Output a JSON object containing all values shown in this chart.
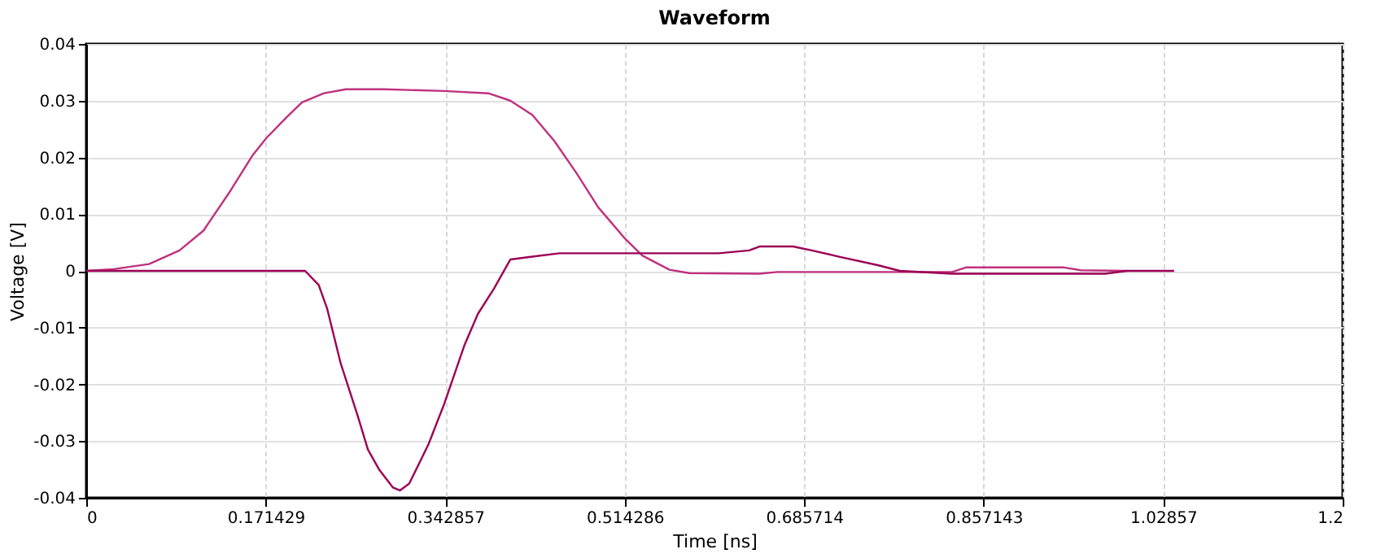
{
  "chart_data": {
    "type": "line",
    "title": "Waveform",
    "xlabel": "Time [ns]",
    "ylabel": "Voltage [V]",
    "xlim": [
      0,
      1.2
    ],
    "xticks": [
      0,
      0.171429,
      0.342857,
      0.514286,
      0.685714,
      0.857143,
      1.02857,
      1.2
    ],
    "ylim": [
      -0.04,
      0.04
    ],
    "yticks": [
      -0.04,
      -0.03,
      -0.02,
      -0.01,
      0,
      0.01,
      0.02,
      0.03,
      0.04
    ],
    "grid": true,
    "line_style": "solid",
    "series": [
      {
        "color": "#c0307e",
        "x": [
          0,
          0.026,
          0.06,
          0.089,
          0.112,
          0.138,
          0.159,
          0.172,
          0.191,
          0.206,
          0.227,
          0.248,
          0.285,
          0.342,
          0.384,
          0.405,
          0.426,
          0.447,
          0.468,
          0.489,
          0.514,
          0.531,
          0.557,
          0.576,
          0.643,
          0.66,
          0.827,
          0.84,
          0.934,
          0.95,
          0.994
        ],
        "values": [
          0,
          0.0003,
          0.0012,
          0.0036,
          0.0071,
          0.0142,
          0.0204,
          0.0234,
          0.027,
          0.0297,
          0.0313,
          0.032,
          0.032,
          0.0317,
          0.0313,
          0.03,
          0.0275,
          0.0229,
          0.0173,
          0.0112,
          0.0058,
          0.0027,
          0.0002,
          -0.0004,
          -0.0005,
          -0.0002,
          -0.0002,
          0.0006,
          0.0006,
          0.0001,
          0
        ]
      },
      {
        "color": "#9c0055",
        "x": [
          0,
          0.209,
          0.222,
          0.23,
          0.243,
          0.259,
          0.269,
          0.28,
          0.293,
          0.2995,
          0.3085,
          0.327,
          0.342,
          0.361,
          0.374,
          0.3895,
          0.405,
          0.426,
          0.452,
          0.604,
          0.633,
          0.643,
          0.675,
          0.693,
          0.719,
          0.756,
          0.777,
          0.827,
          0.973,
          0.994,
          1.039
        ],
        "values": [
          0,
          0,
          -0.0025,
          -0.0066,
          -0.0163,
          -0.0254,
          -0.0315,
          -0.0351,
          -0.0382,
          -0.0387,
          -0.0375,
          -0.0305,
          -0.0234,
          -0.0132,
          -0.0076,
          -0.0031,
          0.002,
          0.0025,
          0.0031,
          0.0031,
          0.0036,
          0.0043,
          0.0043,
          0.0036,
          0.0025,
          0.001,
          0,
          -0.0005,
          -0.0005,
          0,
          0
        ]
      }
    ]
  }
}
